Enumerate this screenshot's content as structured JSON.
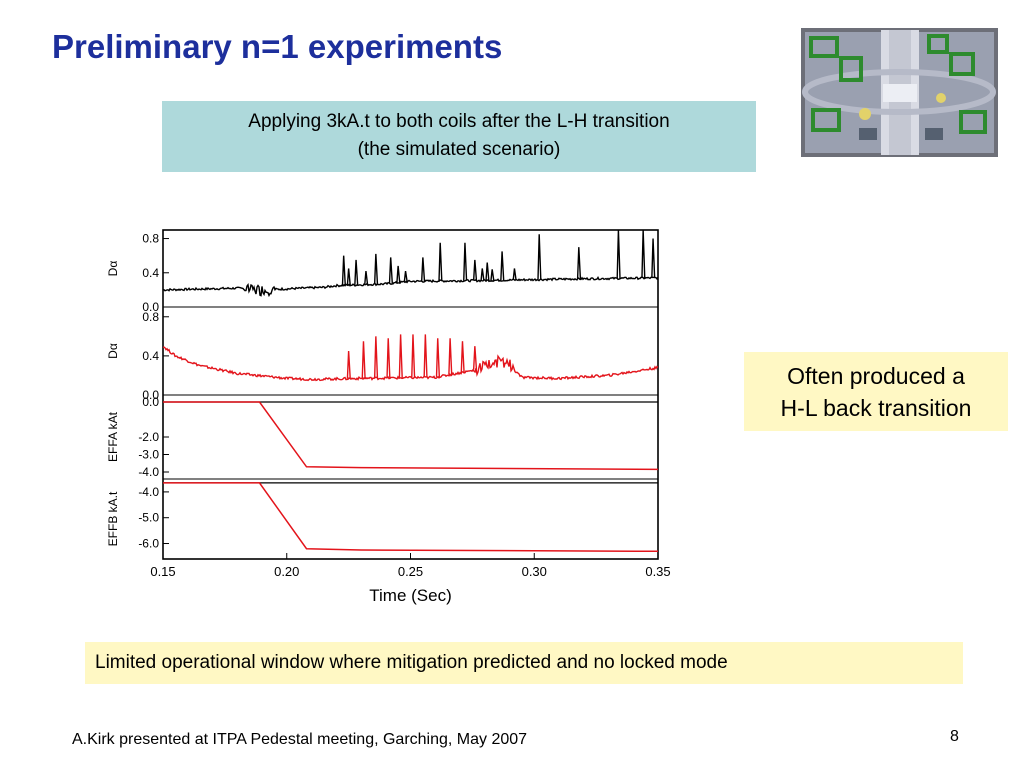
{
  "slide": {
    "title": "Preliminary n=1 experiments",
    "scenario_line1": "Applying 3kA.t to both coils after the L-H transition",
    "scenario_line2": "(the simulated scenario)",
    "note_line1": "Often produced a",
    "note_line2": "H-L back transition",
    "conclusion": "Limited operational window where mitigation predicted and no locked mode",
    "footer": "A.Kirk presented at ITPA Pedestal meeting, Garching, May 2007",
    "page_number": "8"
  },
  "image": {
    "description": "photo"
  },
  "colors": {
    "title": "#1d2f9c",
    "trace_black": "#000000",
    "trace_red": "#e3141b",
    "scenario_box": "#aed9db",
    "note_box": "#fff8c4"
  },
  "chart_data": {
    "type": "line",
    "xlabel": "Time (Sec)",
    "xlim": [
      0.15,
      0.35
    ],
    "x_ticks": [
      "0.15",
      "0.20",
      "0.25",
      "0.30",
      "0.35"
    ],
    "panels": [
      {
        "ylabel": "Dα",
        "ylim": [
          0.0,
          0.9
        ],
        "y_ticks": [
          "0.8",
          "0.4",
          "0.0"
        ],
        "color": "#000000",
        "baseline": [
          [
            0.15,
            0.2
          ],
          [
            0.18,
            0.22
          ],
          [
            0.19,
            0.2
          ],
          [
            0.215,
            0.23
          ],
          [
            0.22,
            0.25
          ],
          [
            0.24,
            0.27
          ],
          [
            0.25,
            0.3
          ],
          [
            0.28,
            0.31
          ],
          [
            0.32,
            0.33
          ],
          [
            0.35,
            0.34
          ]
        ],
        "spikes": [
          [
            0.223,
            0.6
          ],
          [
            0.225,
            0.45
          ],
          [
            0.228,
            0.55
          ],
          [
            0.232,
            0.42
          ],
          [
            0.236,
            0.62
          ],
          [
            0.242,
            0.58
          ],
          [
            0.245,
            0.48
          ],
          [
            0.248,
            0.42
          ],
          [
            0.255,
            0.58
          ],
          [
            0.262,
            0.75
          ],
          [
            0.272,
            0.75
          ],
          [
            0.276,
            0.55
          ],
          [
            0.279,
            0.45
          ],
          [
            0.281,
            0.52
          ],
          [
            0.283,
            0.44
          ],
          [
            0.287,
            0.65
          ],
          [
            0.292,
            0.45
          ],
          [
            0.302,
            0.85
          ],
          [
            0.318,
            0.7
          ],
          [
            0.334,
            0.9
          ],
          [
            0.344,
            0.9
          ],
          [
            0.348,
            0.8
          ]
        ]
      },
      {
        "ylabel": "Dα",
        "ylim": [
          0.0,
          0.9
        ],
        "y_ticks": [
          "0.8",
          "0.4",
          "0.0"
        ],
        "color": "#e3141b",
        "baseline": [
          [
            0.15,
            0.5
          ],
          [
            0.155,
            0.4
          ],
          [
            0.165,
            0.3
          ],
          [
            0.18,
            0.22
          ],
          [
            0.2,
            0.17
          ],
          [
            0.21,
            0.16
          ],
          [
            0.23,
            0.17
          ],
          [
            0.26,
            0.18
          ],
          [
            0.275,
            0.25
          ],
          [
            0.285,
            0.35
          ],
          [
            0.29,
            0.3
          ],
          [
            0.295,
            0.18
          ],
          [
            0.31,
            0.17
          ],
          [
            0.33,
            0.2
          ],
          [
            0.35,
            0.28
          ]
        ],
        "spikes": [
          [
            0.225,
            0.45
          ],
          [
            0.231,
            0.55
          ],
          [
            0.236,
            0.6
          ],
          [
            0.241,
            0.58
          ],
          [
            0.246,
            0.62
          ],
          [
            0.251,
            0.62
          ],
          [
            0.256,
            0.62
          ],
          [
            0.261,
            0.58
          ],
          [
            0.266,
            0.58
          ],
          [
            0.271,
            0.55
          ],
          [
            0.276,
            0.5
          ]
        ]
      },
      {
        "ylabel": "EFFA kAt",
        "ylim": [
          -4.4,
          0.4
        ],
        "y_ticks": [
          "0.0",
          "-2.0",
          "-3.0",
          "-4.0"
        ],
        "color": "#e3141b",
        "reference": 0.0,
        "line": [
          [
            0.15,
            0.0
          ],
          [
            0.189,
            0.0
          ],
          [
            0.208,
            -3.7
          ],
          [
            0.23,
            -3.75
          ],
          [
            0.35,
            -3.85
          ]
        ]
      },
      {
        "ylabel": "EFFB kA.t",
        "ylim": [
          -6.6,
          -3.5
        ],
        "y_ticks": [
          "-4.0",
          "-5.0",
          "-6.0"
        ],
        "color": "#e3141b",
        "reference": -3.65,
        "line": [
          [
            0.15,
            -3.65
          ],
          [
            0.189,
            -3.65
          ],
          [
            0.208,
            -6.2
          ],
          [
            0.23,
            -6.25
          ],
          [
            0.35,
            -6.3
          ]
        ]
      }
    ]
  }
}
